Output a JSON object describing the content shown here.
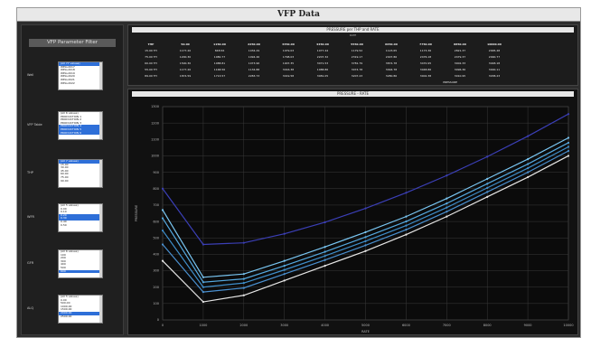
{
  "window": {
    "title": "VFP Data"
  },
  "sidebar": {
    "title": "VFP Parameter Filter",
    "groups": [
      {
        "label": "Well",
        "options": [
          "(All 77 values)",
          "WELL2017",
          "WELL2018",
          "WELL2019",
          "WELL2020",
          "WELL2021",
          "WELL2022"
        ],
        "selected": [
          0
        ]
      },
      {
        "label": "VFP Table",
        "options": [
          "(All 6 values)",
          "PRODUCTION 1",
          "PRODUCTION 2",
          "PRODUCTION 3",
          "PRODUCTION 4",
          "PRODUCTION 5",
          "PRODUCTION 6"
        ],
        "selected": [
          4,
          5,
          6
        ]
      },
      {
        "label": "THP",
        "options": [
          "(All 7 values)",
          "15.00",
          "30.00",
          "45.00",
          "60.00",
          "75.00",
          "90.00"
        ],
        "selected": [
          0
        ]
      },
      {
        "label": "WFR",
        "options": [
          "(All 5 values)",
          "0.00",
          "0.10",
          "0.20",
          "0.30",
          "0.40",
          "0.50"
        ],
        "selected": [
          3,
          4
        ]
      },
      {
        "label": "GFR",
        "options": [
          "(All 6 values)",
          "100",
          "200",
          "300",
          "400",
          "500",
          "600"
        ],
        "selected": [
          6
        ]
      },
      {
        "label": "ALQ",
        "options": [
          "(All 5 values)",
          "0.00",
          "500.00",
          "1000.00",
          "1500.00",
          "2000.00",
          "2500.00"
        ],
        "selected": [
          5
        ]
      }
    ]
  },
  "table_panel": {
    "title": "PRESSURE per THP and RATE",
    "subtitle": "RATE",
    "headers": [
      "THP",
      "50.00",
      "1150.00",
      "2250.00",
      "3350.00",
      "4450.00",
      "5550.00",
      "6650.00",
      "7750.00",
      "8850.00",
      "10000.00"
    ],
    "rows": [
      [
        "15.00 TH",
        "1177.20",
        "848.56",
        "1034.29",
        "1079.03",
        "1077.44",
        "1179.52",
        "1123.65",
        "1173.36",
        "2821.37",
        "2995.48"
      ],
      [
        "75.00 TH",
        "1200.30",
        "1080.77",
        "1094.46",
        "1798.03",
        "2207.32",
        "2319.17",
        "2407.86",
        "2476.18",
        "2479.37",
        "2990.77"
      ],
      [
        "60.00 TH",
        "1500.30",
        "1088.81",
        "1073.96",
        "1907.35",
        "3071.53",
        "3781.79",
        "3874.78",
        "3470.95",
        "3002.33",
        "3048.18"
      ],
      [
        "55.00 TH",
        "1177.20",
        "1168.56",
        "1134.88",
        "3016.38",
        "1088.86",
        "3074.78",
        "3094.78",
        "3048.86",
        "3096.36",
        "3000.11"
      ],
      [
        "89.00 TH",
        "1874.59",
        "1713.57",
        "2283.73",
        "3019.58",
        "3081.05",
        "3207.23",
        "3280.86",
        "3002.38",
        "3010.95",
        "3038.23"
      ]
    ],
    "footer": "PRESSURE"
  },
  "chart_panel": {
    "title": "PRESSURE - RATE"
  },
  "chart_data": {
    "type": "line",
    "title": "PRESSURE - RATE",
    "xlabel": "RATE",
    "ylabel": "PRESSURE",
    "x": [
      0,
      1000,
      2000,
      3000,
      4000,
      5000,
      6000,
      7000,
      8000,
      9000,
      10000
    ],
    "xlim": [
      0,
      10000
    ],
    "ylim": [
      0,
      1300
    ],
    "x_ticks": [
      "0",
      "1000",
      "2000",
      "3000",
      "4000",
      "5000",
      "6000",
      "7000",
      "8000",
      "9000",
      "10000"
    ],
    "y_ticks": [
      "0",
      "100",
      "200",
      "300",
      "400",
      "500",
      "600",
      "700",
      "800",
      "900",
      "1000",
      "1100",
      "1200",
      "1300"
    ],
    "grid": true,
    "series": [
      {
        "values": [
          800,
          460,
          470,
          525,
          595,
          680,
          775,
          880,
          995,
          1120,
          1255
        ],
        "color": "#3b3fb6"
      },
      {
        "values": [
          670,
          260,
          280,
          360,
          445,
          535,
          630,
          740,
          860,
          980,
          1110
        ],
        "color": "#79c6f2"
      },
      {
        "values": [
          620,
          230,
          250,
          330,
          415,
          505,
          600,
          710,
          830,
          950,
          1080
        ],
        "color": "#55a9e0"
      },
      {
        "values": [
          545,
          200,
          225,
          305,
          390,
          480,
          575,
          685,
          805,
          925,
          1055
        ],
        "color": "#3f8fcc"
      },
      {
        "values": [
          460,
          170,
          195,
          280,
          365,
          455,
          550,
          660,
          780,
          900,
          1030
        ],
        "color": "#4a90d0"
      },
      {
        "values": [
          360,
          110,
          150,
          240,
          330,
          420,
          520,
          630,
          750,
          870,
          1000
        ],
        "color": "#e6e6e6"
      }
    ]
  }
}
